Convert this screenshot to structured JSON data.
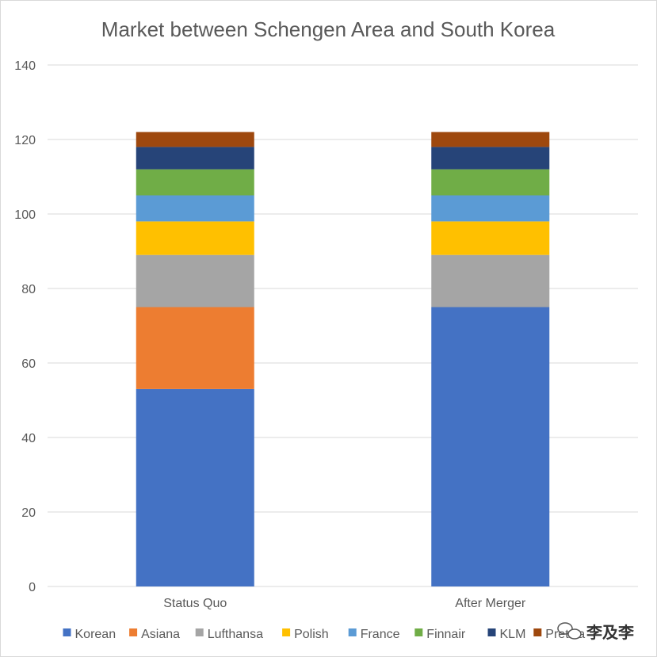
{
  "chart_data": {
    "type": "bar",
    "stacked": true,
    "title": "Market between Schengen Area and South Korea",
    "categories": [
      "Status Quo",
      "After Merger"
    ],
    "ylim": [
      0,
      140
    ],
    "yticks": [
      0,
      20,
      40,
      60,
      80,
      100,
      120,
      140
    ],
    "grid": true,
    "legend_position": "bottom",
    "series": [
      {
        "name": "Korean",
        "color": "#4472C4",
        "values": [
          53,
          75
        ]
      },
      {
        "name": "Asiana",
        "color": "#ED7D31",
        "values": [
          22,
          0
        ]
      },
      {
        "name": "Lufthansa",
        "color": "#A5A5A5",
        "values": [
          14,
          14
        ]
      },
      {
        "name": "Polish",
        "color": "#FFC000",
        "values": [
          9,
          9
        ]
      },
      {
        "name": "France",
        "color": "#5B9BD5",
        "values": [
          7,
          7
        ]
      },
      {
        "name": "Finnair",
        "color": "#70AD47",
        "values": [
          7,
          7
        ]
      },
      {
        "name": "KLM",
        "color": "#264478",
        "values": [
          6,
          6
        ]
      },
      {
        "name": "Pretzia",
        "color": "#9E480E",
        "values": [
          4,
          4
        ]
      }
    ]
  },
  "watermark": "李及李"
}
